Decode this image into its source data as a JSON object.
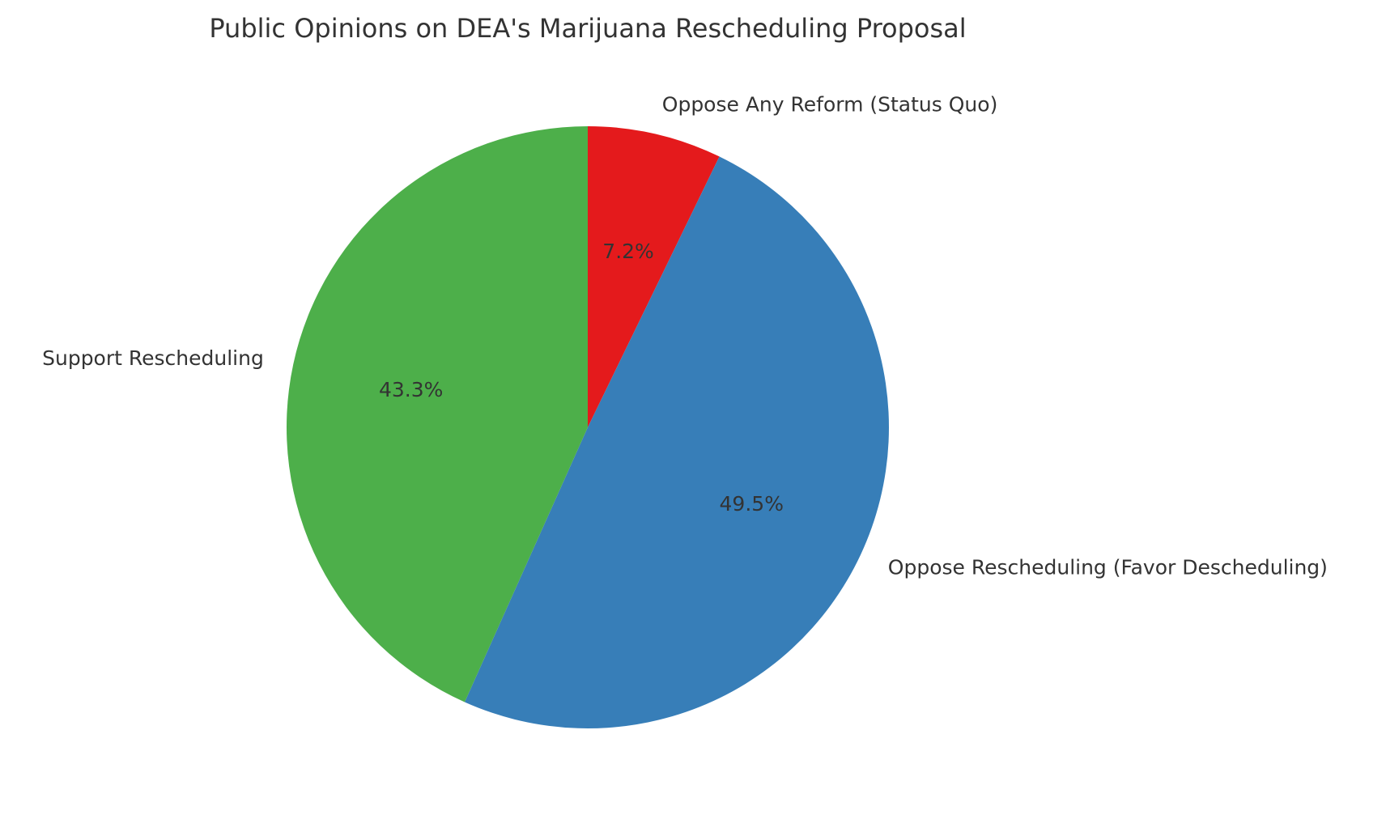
{
  "chart_data": {
    "type": "pie",
    "title": "Public Opinions on DEA's Marijuana Rescheduling Proposal",
    "start_angle_deg": 90,
    "direction": "clockwise",
    "slices": [
      {
        "label": "Oppose Any Reform (Status Quo)",
        "value": 7.2,
        "pct_text": "7.2%",
        "color": "#e41a1c"
      },
      {
        "label": "Oppose Rescheduling (Favor Descheduling)",
        "value": 49.5,
        "pct_text": "49.5%",
        "color": "#377eb8"
      },
      {
        "label": "Support Rescheduling",
        "value": 43.3,
        "pct_text": "43.3%",
        "color": "#4daf4a"
      }
    ]
  }
}
